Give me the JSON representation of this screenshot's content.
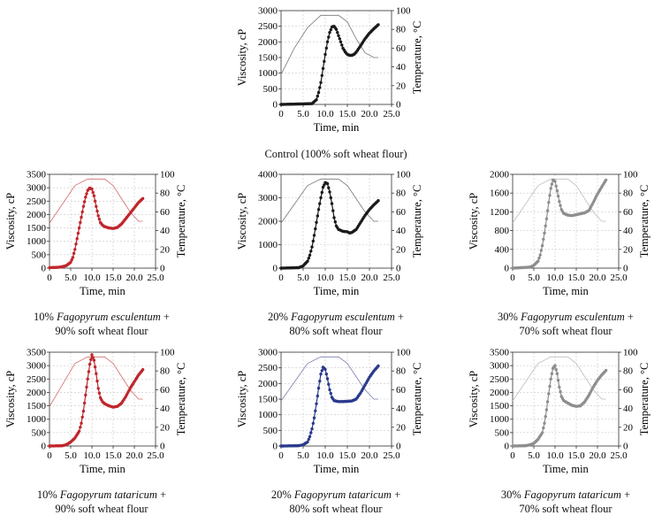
{
  "chart_data": [
    {
      "type": "line",
      "xlabel": "Time, min",
      "ylabel": "Viscosity, cP",
      "y2label": "Temperature, °C",
      "xlim": [
        0,
        25
      ],
      "xticks": [
        "0",
        "5.0",
        "10.0",
        "15.0",
        "20.0",
        "25.0"
      ],
      "ylim": [
        0,
        3000
      ],
      "yticks": [
        "0",
        "500",
        "1000",
        "1500",
        "2000",
        "2500",
        "3000"
      ],
      "y2lim": [
        0,
        100
      ],
      "y2ticks": [
        "0",
        "20",
        "40",
        "60",
        "80",
        "100"
      ],
      "grid": true,
      "color": "#1a1a1a",
      "temp_color": "#777777",
      "caption_lines": [
        {
          "pre": "Control (100% soft wheat flour)",
          "ital": "",
          "post": ""
        }
      ],
      "viscosity_points": [
        [
          0,
          0
        ],
        [
          7,
          25
        ],
        [
          8,
          150
        ],
        [
          8.5,
          380
        ],
        [
          9,
          700
        ],
        [
          9.5,
          1150
        ],
        [
          10,
          1600
        ],
        [
          10.5,
          2000
        ],
        [
          11,
          2300
        ],
        [
          11.5,
          2480
        ],
        [
          12,
          2500
        ],
        [
          12.5,
          2400
        ],
        [
          13,
          2200
        ],
        [
          13.5,
          2000
        ],
        [
          14,
          1800
        ],
        [
          14.5,
          1680
        ],
        [
          15,
          1600
        ],
        [
          15.5,
          1570
        ],
        [
          16,
          1570
        ],
        [
          16.5,
          1600
        ],
        [
          17,
          1670
        ],
        [
          18,
          1880
        ],
        [
          19,
          2100
        ],
        [
          20,
          2280
        ],
        [
          21,
          2420
        ],
        [
          22,
          2550
        ]
      ],
      "temperature_points": [
        [
          0,
          32
        ],
        [
          3,
          60
        ],
        [
          6,
          82
        ],
        [
          9,
          95
        ],
        [
          13,
          95
        ],
        [
          15,
          88
        ],
        [
          17,
          70
        ],
        [
          19,
          55
        ],
        [
          21,
          50
        ],
        [
          22,
          50
        ]
      ]
    },
    {
      "type": "line",
      "xlabel": "Time, min",
      "ylabel": "Viscosity, cP",
      "y2label": "Temperature, °C",
      "xlim": [
        0,
        25
      ],
      "xticks": [
        "0",
        "5.0",
        "10.0",
        "15.0",
        "20.0",
        "25.0"
      ],
      "ylim": [
        0,
        3500
      ],
      "yticks": [
        "0",
        "500",
        "1000",
        "1500",
        "2000",
        "2500",
        "3000",
        "3500"
      ],
      "y2lim": [
        0,
        100
      ],
      "y2ticks": [
        "0",
        "20",
        "40",
        "60",
        "80",
        "100"
      ],
      "grid": true,
      "color": "#c0262c",
      "temp_color": "#d46a6a",
      "caption_lines": [
        {
          "pre": "10% ",
          "ital": "Fagopyrum esculentum",
          "post": " +"
        },
        {
          "pre": "90% soft wheat flour",
          "ital": "",
          "post": ""
        }
      ],
      "viscosity_points": [
        [
          0,
          20
        ],
        [
          2,
          30
        ],
        [
          3,
          50
        ],
        [
          4,
          100
        ],
        [
          5,
          220
        ],
        [
          5.5,
          400
        ],
        [
          6,
          700
        ],
        [
          6.5,
          1100
        ],
        [
          7,
          1500
        ],
        [
          7.5,
          1900
        ],
        [
          8,
          2300
        ],
        [
          8.5,
          2650
        ],
        [
          9,
          2900
        ],
        [
          9.5,
          2990
        ],
        [
          10,
          2950
        ],
        [
          10.5,
          2700
        ],
        [
          11,
          2300
        ],
        [
          11.5,
          1950
        ],
        [
          12,
          1700
        ],
        [
          12.5,
          1600
        ],
        [
          13,
          1550
        ],
        [
          14,
          1500
        ],
        [
          15,
          1480
        ],
        [
          16,
          1520
        ],
        [
          17,
          1650
        ],
        [
          18,
          1850
        ],
        [
          19,
          2050
        ],
        [
          20,
          2250
        ],
        [
          21,
          2450
        ],
        [
          22,
          2600
        ]
      ],
      "temperature_points": [
        [
          0,
          48
        ],
        [
          3,
          68
        ],
        [
          6,
          88
        ],
        [
          9,
          95
        ],
        [
          13,
          95
        ],
        [
          15,
          88
        ],
        [
          17,
          74
        ],
        [
          19,
          60
        ],
        [
          21,
          50
        ],
        [
          22,
          50
        ]
      ]
    },
    {
      "type": "line",
      "xlabel": "Time, min",
      "ylabel": "Viscosity, cP",
      "y2label": "Temperature, °C",
      "xlim": [
        0,
        25
      ],
      "xticks": [
        "0",
        "5.0",
        "10.0",
        "15.0",
        "20.0",
        "25.0"
      ],
      "ylim": [
        0,
        4000
      ],
      "yticks": [
        "0",
        "1000",
        "2000",
        "3000",
        "4000"
      ],
      "y2lim": [
        0,
        100
      ],
      "y2ticks": [
        "0",
        "20",
        "40",
        "60",
        "80",
        "100"
      ],
      "grid": true,
      "color": "#1a1a1a",
      "temp_color": "#777777",
      "caption_lines": [
        {
          "pre": "20% ",
          "ital": "Fagopyrum esculentum",
          "post": " +"
        },
        {
          "pre": "80% soft wheat flour",
          "ital": "",
          "post": ""
        }
      ],
      "viscosity_points": [
        [
          0,
          0
        ],
        [
          4,
          20
        ],
        [
          5,
          100
        ],
        [
          6,
          300
        ],
        [
          6.5,
          550
        ],
        [
          7,
          900
        ],
        [
          7.5,
          1400
        ],
        [
          8,
          1950
        ],
        [
          8.5,
          2500
        ],
        [
          9,
          3000
        ],
        [
          9.5,
          3450
        ],
        [
          10,
          3650
        ],
        [
          10.5,
          3600
        ],
        [
          11,
          3250
        ],
        [
          11.5,
          2750
        ],
        [
          12,
          2150
        ],
        [
          12.5,
          1800
        ],
        [
          13,
          1650
        ],
        [
          14,
          1570
        ],
        [
          15,
          1550
        ],
        [
          15.5,
          1500
        ],
        [
          16,
          1520
        ],
        [
          17,
          1650
        ],
        [
          18,
          1950
        ],
        [
          19,
          2250
        ],
        [
          20,
          2500
        ],
        [
          21,
          2700
        ],
        [
          22,
          2880
        ]
      ],
      "temperature_points": [
        [
          0,
          48
        ],
        [
          3,
          68
        ],
        [
          6,
          88
        ],
        [
          9,
          95
        ],
        [
          13,
          95
        ],
        [
          15,
          88
        ],
        [
          17,
          74
        ],
        [
          19,
          60
        ],
        [
          21,
          50
        ],
        [
          22,
          50
        ]
      ]
    },
    {
      "type": "line",
      "xlabel": "Time, min",
      "ylabel": "Viscosity, cP",
      "y2label": "Temperature, °C",
      "xlim": [
        0,
        25
      ],
      "xticks": [
        "0",
        "5.0",
        "10.0",
        "15.0",
        "20.0",
        "25.0"
      ],
      "ylim": [
        0,
        2000
      ],
      "yticks": [
        "0",
        "400",
        "800",
        "1200",
        "1600",
        "2000"
      ],
      "y2lim": [
        0,
        100
      ],
      "y2ticks": [
        "0",
        "20",
        "40",
        "60",
        "80",
        "100"
      ],
      "grid": true,
      "color": "#8e8e8e",
      "temp_color": "#bdbdbd",
      "caption_lines": [
        {
          "pre": "30% ",
          "ital": "Fagopyrum esculentum",
          "post": " +"
        },
        {
          "pre": "70% soft wheat flour",
          "ital": "",
          "post": ""
        }
      ],
      "viscosity_points": [
        [
          0,
          0
        ],
        [
          4,
          20
        ],
        [
          5,
          60
        ],
        [
          6,
          150
        ],
        [
          6.5,
          280
        ],
        [
          7,
          480
        ],
        [
          7.5,
          750
        ],
        [
          8,
          1050
        ],
        [
          8.5,
          1400
        ],
        [
          9,
          1700
        ],
        [
          9.5,
          1880
        ],
        [
          10,
          1850
        ],
        [
          10.5,
          1650
        ],
        [
          11,
          1420
        ],
        [
          11.5,
          1250
        ],
        [
          12,
          1170
        ],
        [
          13,
          1130
        ],
        [
          14,
          1120
        ],
        [
          15,
          1140
        ],
        [
          16,
          1160
        ],
        [
          17,
          1180
        ],
        [
          18,
          1230
        ],
        [
          19,
          1400
        ],
        [
          20,
          1580
        ],
        [
          21,
          1730
        ],
        [
          22,
          1880
        ]
      ],
      "temperature_points": [
        [
          0,
          48
        ],
        [
          3,
          68
        ],
        [
          6,
          88
        ],
        [
          9,
          95
        ],
        [
          13,
          95
        ],
        [
          15,
          88
        ],
        [
          17,
          74
        ],
        [
          19,
          60
        ],
        [
          21,
          50
        ],
        [
          22,
          50
        ]
      ]
    },
    {
      "type": "line",
      "xlabel": "Time, min",
      "ylabel": "Viscosity, cP",
      "y2label": "Temperature, °C",
      "xlim": [
        0,
        25
      ],
      "xticks": [
        "0",
        "5.0",
        "10.0",
        "15.0",
        "20.0",
        "25.0"
      ],
      "ylim": [
        0,
        3500
      ],
      "yticks": [
        "0",
        "500",
        "1000",
        "1500",
        "2000",
        "2500",
        "3000",
        "3500"
      ],
      "y2lim": [
        0,
        100
      ],
      "y2ticks": [
        "0",
        "20",
        "40",
        "60",
        "80",
        "100"
      ],
      "grid": true,
      "color": "#c0262c",
      "temp_color": "#d46a6a",
      "caption_lines": [
        {
          "pre": "10% ",
          "ital": "Fagopyrum tataricum",
          "post": " +"
        },
        {
          "pre": "90% soft wheat flour",
          "ital": "",
          "post": ""
        }
      ],
      "viscosity_points": [
        [
          0,
          0
        ],
        [
          3,
          10
        ],
        [
          4,
          50
        ],
        [
          5,
          150
        ],
        [
          6,
          300
        ],
        [
          7,
          550
        ],
        [
          7.5,
          850
        ],
        [
          8,
          1300
        ],
        [
          8.5,
          1900
        ],
        [
          9,
          2500
        ],
        [
          9.5,
          3050
        ],
        [
          10,
          3400
        ],
        [
          10.5,
          3200
        ],
        [
          11,
          2700
        ],
        [
          11.5,
          2150
        ],
        [
          12,
          1800
        ],
        [
          12.5,
          1650
        ],
        [
          13,
          1580
        ],
        [
          14,
          1500
        ],
        [
          15,
          1450
        ],
        [
          16,
          1480
        ],
        [
          17,
          1600
        ],
        [
          18,
          1850
        ],
        [
          19,
          2150
        ],
        [
          20,
          2400
        ],
        [
          21,
          2650
        ],
        [
          22,
          2850
        ]
      ],
      "temperature_points": [
        [
          0,
          42
        ],
        [
          3,
          65
        ],
        [
          6,
          88
        ],
        [
          9,
          95
        ],
        [
          13,
          95
        ],
        [
          15,
          88
        ],
        [
          17,
          74
        ],
        [
          19,
          60
        ],
        [
          21,
          50
        ],
        [
          22,
          50
        ]
      ]
    },
    {
      "type": "line",
      "xlabel": "Time, min",
      "ylabel": "Viscosity, cP",
      "y2label": "Temperature, °C",
      "xlim": [
        0,
        25
      ],
      "xticks": [
        "0",
        "5.0",
        "10.0",
        "15.0",
        "20.0",
        "25.0"
      ],
      "ylim": [
        0,
        3000
      ],
      "yticks": [
        "0",
        "500",
        "1000",
        "1500",
        "2000",
        "2500",
        "3000"
      ],
      "y2lim": [
        0,
        100
      ],
      "y2ticks": [
        "0",
        "20",
        "40",
        "60",
        "80",
        "100"
      ],
      "grid": true,
      "color": "#2b3a8c",
      "temp_color": "#7a7fb0",
      "caption_lines": [
        {
          "pre": "20% ",
          "ital": "Fagopyrum tataricum",
          "post": " +"
        },
        {
          "pre": "80% soft wheat flour",
          "ital": "",
          "post": ""
        }
      ],
      "viscosity_points": [
        [
          0,
          0
        ],
        [
          4,
          10
        ],
        [
          5,
          40
        ],
        [
          6,
          130
        ],
        [
          6.5,
          300
        ],
        [
          7,
          550
        ],
        [
          7.5,
          900
        ],
        [
          8,
          1350
        ],
        [
          8.5,
          1850
        ],
        [
          9,
          2300
        ],
        [
          9.5,
          2520
        ],
        [
          10,
          2450
        ],
        [
          10.5,
          2150
        ],
        [
          11,
          1800
        ],
        [
          11.5,
          1560
        ],
        [
          12,
          1450
        ],
        [
          13,
          1420
        ],
        [
          14,
          1420
        ],
        [
          15,
          1430
        ],
        [
          16,
          1440
        ],
        [
          17,
          1500
        ],
        [
          18,
          1700
        ],
        [
          19,
          1950
        ],
        [
          20,
          2200
        ],
        [
          21,
          2400
        ],
        [
          22,
          2560
        ]
      ],
      "temperature_points": [
        [
          0,
          48
        ],
        [
          3,
          68
        ],
        [
          6,
          88
        ],
        [
          9,
          95
        ],
        [
          13,
          95
        ],
        [
          15,
          88
        ],
        [
          17,
          74
        ],
        [
          19,
          60
        ],
        [
          21,
          50
        ],
        [
          22,
          50
        ]
      ]
    },
    {
      "type": "line",
      "xlabel": "Time, min",
      "ylabel": "Viscosity, cP",
      "y2label": "Temperature, °C",
      "xlim": [
        0,
        25
      ],
      "xticks": [
        "0",
        "5.0",
        "10.0",
        "15.0",
        "20.0",
        "25.0"
      ],
      "ylim": [
        0,
        3500
      ],
      "yticks": [
        "0",
        "500",
        "1000",
        "1500",
        "2000",
        "2500",
        "3000",
        "3500"
      ],
      "y2lim": [
        0,
        100
      ],
      "y2ticks": [
        "0",
        "20",
        "40",
        "60",
        "80",
        "100"
      ],
      "grid": true,
      "color": "#8e8e8e",
      "temp_color": "#bdbdbd",
      "caption_lines": [
        {
          "pre": "30% ",
          "ital": "Fagopyrum tataricum",
          "post": " +"
        },
        {
          "pre": "70% soft wheat flour",
          "ital": "",
          "post": ""
        }
      ],
      "viscosity_points": [
        [
          0,
          0
        ],
        [
          3,
          10
        ],
        [
          4,
          40
        ],
        [
          5,
          100
        ],
        [
          6,
          250
        ],
        [
          7,
          500
        ],
        [
          7.5,
          850
        ],
        [
          8,
          1350
        ],
        [
          8.5,
          1950
        ],
        [
          9,
          2500
        ],
        [
          9.5,
          2900
        ],
        [
          10,
          3000
        ],
        [
          10.5,
          2700
        ],
        [
          11,
          2200
        ],
        [
          11.5,
          1850
        ],
        [
          12,
          1700
        ],
        [
          13,
          1600
        ],
        [
          14,
          1520
        ],
        [
          15,
          1480
        ],
        [
          16,
          1500
        ],
        [
          17,
          1650
        ],
        [
          18,
          1900
        ],
        [
          19,
          2200
        ],
        [
          20,
          2450
        ],
        [
          21,
          2650
        ],
        [
          22,
          2820
        ]
      ],
      "temperature_points": [
        [
          0,
          48
        ],
        [
          3,
          68
        ],
        [
          6,
          88
        ],
        [
          9,
          95
        ],
        [
          13,
          95
        ],
        [
          15,
          88
        ],
        [
          17,
          74
        ],
        [
          19,
          60
        ],
        [
          21,
          50
        ],
        [
          22,
          50
        ]
      ]
    }
  ]
}
